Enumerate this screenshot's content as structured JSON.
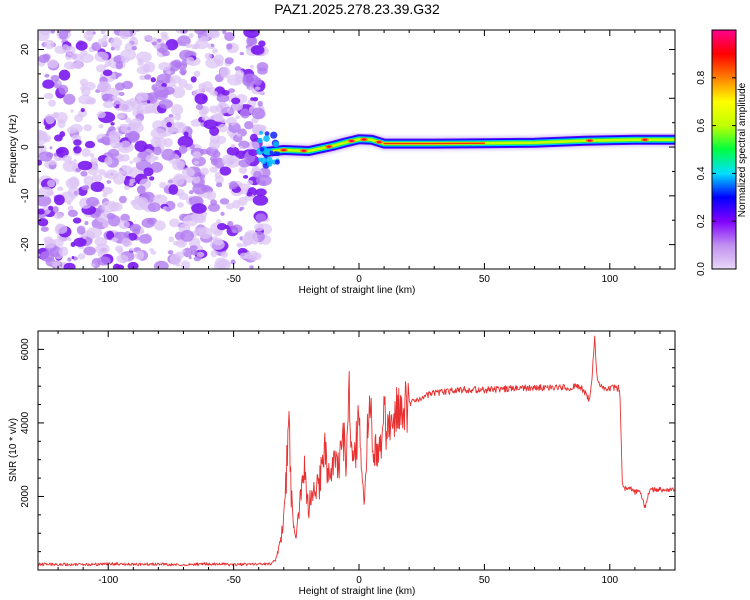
{
  "chart_data": [
    {
      "type": "heatmap",
      "title": "PAZ1.2025.278.23.39.G32",
      "xlabel": "Height of straight line (km)",
      "ylabel": "Frequency (Hz)",
      "xlim": [
        -128,
        126
      ],
      "ylim": [
        -25,
        24
      ],
      "xticks": [
        -100,
        -50,
        0,
        50,
        100
      ],
      "xtick_labels": [
        "-100",
        "-50",
        "0",
        "50",
        "100"
      ],
      "yticks": [
        -20,
        -10,
        0,
        10,
        20
      ],
      "ytick_labels": [
        "-20",
        "-10",
        "0",
        "10",
        "20"
      ],
      "noise_region_x": [
        -128,
        -37
      ],
      "signal_track": [
        {
          "x": -37,
          "y": -1.0
        },
        {
          "x": -30,
          "y": -0.6
        },
        {
          "x": -20,
          "y": -0.8
        },
        {
          "x": -10,
          "y": 0.3
        },
        {
          "x": -5,
          "y": 1.0
        },
        {
          "x": 0,
          "y": 1.6
        },
        {
          "x": 5,
          "y": 1.5
        },
        {
          "x": 10,
          "y": 0.7
        },
        {
          "x": 30,
          "y": 0.7
        },
        {
          "x": 50,
          "y": 0.8
        },
        {
          "x": 70,
          "y": 0.9
        },
        {
          "x": 90,
          "y": 1.3
        },
        {
          "x": 110,
          "y": 1.5
        },
        {
          "x": 126,
          "y": 1.5
        }
      ],
      "colorbar": {
        "label": "Normalized spectral amplitude",
        "range": [
          0,
          1
        ],
        "ticks": [
          0.0,
          0.2,
          0.4,
          0.6,
          0.8
        ],
        "tick_labels": [
          "0.0",
          "0.2",
          "0.4",
          "0.6",
          "0.8"
        ],
        "colors": [
          "#e8d8f8",
          "#c090f0",
          "#8000ff",
          "#0000ff",
          "#00e0ff",
          "#00ff40",
          "#c0ff00",
          "#ffff00",
          "#ff8000",
          "#ff0000",
          "#ff0090"
        ]
      }
    },
    {
      "type": "line",
      "xlabel": "Height of straight line (km)",
      "ylabel": "SNR (10 * v/v)",
      "xlim": [
        -128,
        126
      ],
      "ylim": [
        0,
        6500
      ],
      "xticks": [
        -100,
        -50,
        0,
        50,
        100
      ],
      "xtick_labels": [
        "-100",
        "-50",
        "0",
        "50",
        "100"
      ],
      "yticks": [
        2000,
        4000,
        6000
      ],
      "ytick_labels": [
        "2000",
        "4000",
        "6000"
      ],
      "series": [
        {
          "name": "SNR",
          "color": "#e83030",
          "x": [
            -128,
            -120,
            -110,
            -100,
            -90,
            -80,
            -70,
            -60,
            -50,
            -45,
            -40,
            -35,
            -33,
            -31,
            -30,
            -29,
            -28,
            -27,
            -26,
            -25,
            -24,
            -22,
            -20,
            -18,
            -16,
            -14,
            -12,
            -10,
            -8,
            -6,
            -5,
            -4,
            -3,
            -2,
            -1,
            0,
            1,
            2,
            4,
            6,
            8,
            10,
            12,
            14,
            16,
            18,
            20,
            25,
            30,
            35,
            40,
            45,
            50,
            55,
            60,
            65,
            70,
            75,
            80,
            85,
            88,
            90,
            92,
            93,
            94,
            95,
            96,
            98,
            100,
            102,
            104,
            105,
            106,
            108,
            110,
            112,
            114,
            116,
            118,
            120,
            122,
            124,
            126
          ],
          "values": [
            150,
            160,
            140,
            170,
            150,
            160,
            150,
            170,
            150,
            160,
            150,
            170,
            300,
            900,
            1500,
            2500,
            4200,
            2000,
            1200,
            800,
            1600,
            2800,
            1700,
            2400,
            2200,
            3300,
            2600,
            3200,
            2900,
            3600,
            2700,
            4900,
            3200,
            2900,
            3500,
            4300,
            2600,
            2000,
            4600,
            3200,
            3100,
            4200,
            3700,
            4200,
            4400,
            4300,
            4500,
            4700,
            4800,
            4850,
            4900,
            4900,
            4900,
            4920,
            4930,
            4950,
            4950,
            4960,
            4960,
            4970,
            4980,
            4850,
            4600,
            5300,
            6300,
            5100,
            5000,
            4950,
            4960,
            4950,
            4940,
            2300,
            2200,
            2250,
            2100,
            2200,
            1700,
            2200,
            2180,
            2200,
            2150,
            2200,
            2180
          ]
        }
      ]
    }
  ]
}
